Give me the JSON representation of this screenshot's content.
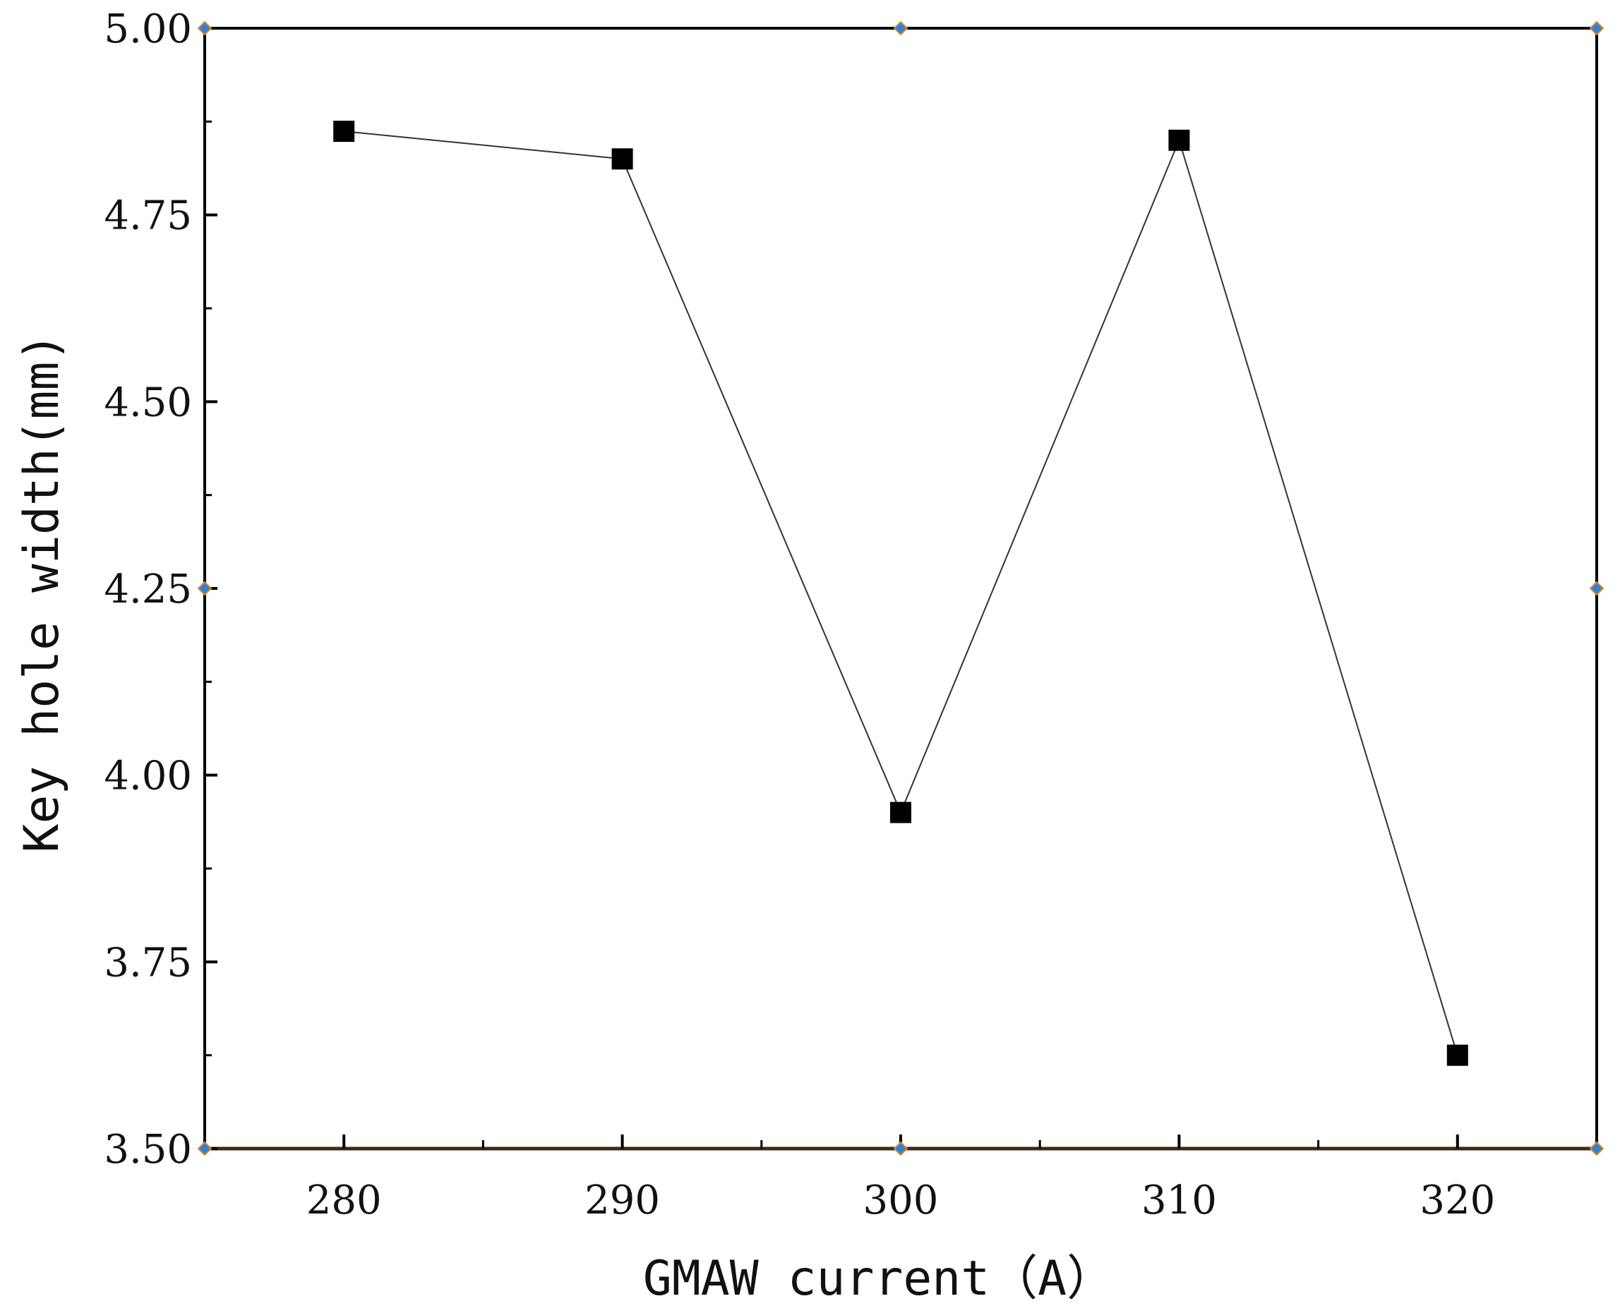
{
  "chart_data": {
    "type": "line",
    "title": "",
    "xlabel": "GMAW current（A）",
    "ylabel": "Key hole width(mm)",
    "xlim": [
      275,
      325
    ],
    "ylim": [
      3.5,
      5.0
    ],
    "x_ticks": [
      280,
      290,
      300,
      310,
      320
    ],
    "x_tick_labels": [
      "280",
      "290",
      "300",
      "310",
      "320"
    ],
    "y_ticks": [
      3.5,
      3.75,
      4.0,
      4.25,
      4.5,
      4.75,
      5.0
    ],
    "y_tick_labels": [
      "3.50",
      "3.75",
      "4.00",
      "4.25",
      "4.50",
      "4.75",
      "5.00"
    ],
    "grid": false,
    "marker": "square",
    "colors": {
      "line": "#333333",
      "marker": "#000000",
      "axis": "#000000"
    },
    "series": [
      {
        "x": [
          280,
          290,
          300,
          310,
          320
        ],
        "y": [
          4.862,
          4.825,
          3.95,
          4.85,
          3.625
        ]
      }
    ]
  }
}
